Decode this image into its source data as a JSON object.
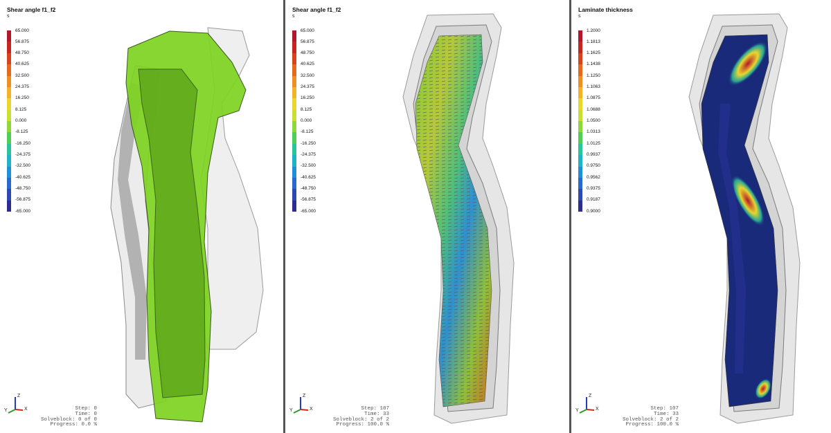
{
  "panels": [
    {
      "title": "Shear angle f1_f2",
      "unit": "s",
      "legend_labels": [
        "65.000",
        "56.875",
        "48.750",
        "40.625",
        "32.500",
        "24.375",
        "16.250",
        "8.125",
        "0.000",
        "-8.125",
        "-16.250",
        "-24.375",
        "-32.500",
        "-40.625",
        "-48.750",
        "-56.875",
        "-65.000"
      ],
      "status": {
        "step": "Step: 0",
        "time": "Time: 0",
        "solveblock": "Solveblock: 0 of 0",
        "progress": "Progress: 0.0 %"
      },
      "axis": {
        "z": "Z",
        "y": "Y",
        "x": "X"
      }
    },
    {
      "title": "Shear angle f1_f2",
      "unit": "s",
      "legend_labels": [
        "65.000",
        "56.875",
        "48.750",
        "40.625",
        "32.500",
        "24.375",
        "16.250",
        "8.125",
        "0.000",
        "-8.125",
        "-16.250",
        "-24.375",
        "-32.500",
        "-40.625",
        "-48.750",
        "-56.875",
        "-65.000"
      ],
      "status": {
        "step": "Step: 107",
        "time": "Time: 33",
        "solveblock": "Solveblock: 2 of 2",
        "progress": "Progress: 100.0 %"
      },
      "axis": {
        "z": "Z",
        "y": "Y",
        "x": "X"
      }
    },
    {
      "title": "Laminate thickness",
      "unit": "s",
      "legend_labels": [
        "1.2000",
        "1.1813",
        "1.1625",
        "1.1438",
        "1.1250",
        "1.1063",
        "1.0875",
        "1.0688",
        "1.0500",
        "1.0313",
        "1.0125",
        "0.9937",
        "0.9750",
        "0.9562",
        "0.9375",
        "0.9187",
        "0.9000"
      ],
      "status": {
        "step": "Step: 107",
        "time": "Time: 33",
        "solveblock": "Solveblock: 2 of 2",
        "progress": "Progress: 100.0 %"
      },
      "axis": {
        "z": "Z",
        "y": "Y",
        "x": "X"
      }
    }
  ],
  "colors": {
    "scale": [
      "#b2182b",
      "#c6261e",
      "#d9431b",
      "#e56a1f",
      "#ee8f24",
      "#f3b22a",
      "#e9d62e",
      "#c9e032",
      "#8fd73a",
      "#4fcf57",
      "#2cc59a",
      "#1fb3c8",
      "#1f8fd8",
      "#2769cf",
      "#2d47b3",
      "#2c2d8f"
    ],
    "part_green": "#7ed321",
    "mold_grey": "#d9d9d9",
    "laminate_blue": "#1a2a7a"
  }
}
